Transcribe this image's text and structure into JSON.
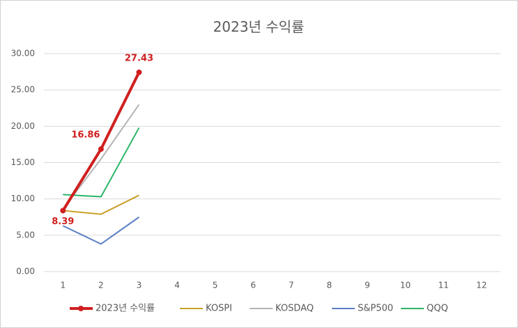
{
  "chart_data": {
    "type": "line",
    "title": "2023년 수익률",
    "categories": [
      "1",
      "2",
      "3",
      "4",
      "5",
      "6",
      "7",
      "8",
      "9",
      "10",
      "11",
      "12"
    ],
    "series": [
      {
        "name": "2023년 수익률",
        "color": "#d01f1f",
        "values": [
          8.39,
          16.86,
          27.43,
          null,
          null,
          null,
          null,
          null,
          null,
          null,
          null,
          null
        ]
      },
      {
        "name": "KOSPI",
        "color": "#c9a02a",
        "values": [
          8.4,
          7.9,
          10.5,
          null,
          null,
          null,
          null,
          null,
          null,
          null,
          null,
          null
        ]
      },
      {
        "name": "KOSDAQ",
        "color": "#b4b4b4",
        "values": [
          8.6,
          15.5,
          23.0,
          null,
          null,
          null,
          null,
          null,
          null,
          null,
          null,
          null
        ]
      },
      {
        "name": "S&P500",
        "color": "#5b7fc4",
        "values": [
          6.3,
          3.8,
          7.5,
          null,
          null,
          null,
          null,
          null,
          null,
          null,
          null,
          null
        ]
      },
      {
        "name": "QQQ",
        "color": "#2bb566",
        "values": [
          10.6,
          10.3,
          19.8,
          null,
          null,
          null,
          null,
          null,
          null,
          null,
          null,
          null
        ]
      }
    ],
    "ylim": [
      0,
      30
    ],
    "yticks": [
      {
        "value": 0,
        "label": "0.00"
      },
      {
        "value": 5,
        "label": "5.00"
      },
      {
        "value": 10,
        "label": "10.00"
      },
      {
        "value": 15,
        "label": "15.00"
      },
      {
        "value": 20,
        "label": "20.00"
      },
      {
        "value": 25,
        "label": "25.00"
      },
      {
        "value": 30,
        "label": "30.00"
      }
    ],
    "grid": true
  }
}
